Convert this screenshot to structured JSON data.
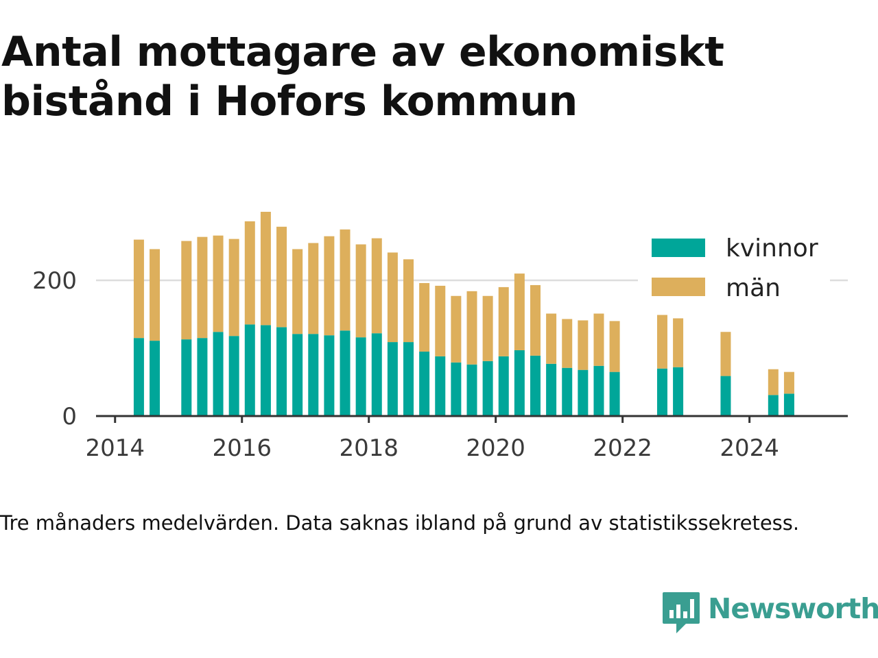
{
  "title": "Antal mottagare av ekonomiskt bistånd i Hofors kommun",
  "note": "Tre månaders medelvärden. Data saknas ibland på grund av statistikssekretess.",
  "brand": "Newsworthy",
  "colors": {
    "kvinnor": "#00a699",
    "man": "#ddaf5c",
    "brand": "#3a9e91",
    "axis": "#333333",
    "grid": "#dddddd"
  },
  "chart_data": {
    "type": "bar",
    "stacked": true,
    "xlim": [
      2013.7,
      2025.55
    ],
    "ylim": [
      0,
      300
    ],
    "x_ticks": [
      "2014",
      "2016",
      "2018",
      "2020",
      "2022",
      "2024"
    ],
    "y_ticks": [
      "0",
      "200"
    ],
    "grid": "horizontal",
    "legend_position": "top-right",
    "x": [
      2014.375,
      2014.625,
      2015.125,
      2015.375,
      2015.625,
      2015.875,
      2016.125,
      2016.375,
      2016.625,
      2016.875,
      2017.125,
      2017.375,
      2017.625,
      2017.875,
      2018.125,
      2018.375,
      2018.625,
      2018.875,
      2019.125,
      2019.375,
      2019.625,
      2019.875,
      2020.125,
      2020.375,
      2020.625,
      2020.875,
      2021.125,
      2021.375,
      2021.625,
      2021.875,
      2022.625,
      2022.875,
      2023.625,
      2024.375,
      2024.625
    ],
    "series": [
      {
        "name": "kvinnor",
        "values": [
          115,
          111,
          113,
          115,
          124,
          118,
          135,
          134,
          131,
          121,
          121,
          119,
          126,
          116,
          122,
          109,
          109,
          95,
          88,
          79,
          76,
          81,
          88,
          97,
          89,
          77,
          71,
          68,
          74,
          65,
          70,
          72,
          59,
          31,
          33
        ]
      },
      {
        "name": "män",
        "values": [
          145,
          135,
          145,
          149,
          142,
          143,
          152,
          167,
          148,
          125,
          134,
          146,
          149,
          137,
          140,
          132,
          122,
          101,
          104,
          98,
          108,
          96,
          102,
          113,
          104,
          74,
          72,
          73,
          77,
          75,
          79,
          72,
          65,
          38,
          32
        ]
      }
    ]
  }
}
